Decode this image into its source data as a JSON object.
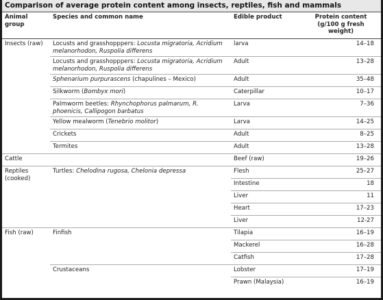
{
  "title": "Comparison of average protein content among insects, reptiles, fish and mammals",
  "header": [
    "Animal group",
    "Species and common name",
    "Edible product",
    "Protein content (g/100 g fresh weight)"
  ],
  "groups": [
    {
      "name": "Insects (raw)",
      "species": [
        {
          "name": [
            "Locusts and grasshopppers: ",
            "Locusta migratoria, Acridium melanorhodon, Ruspolia differens"
          ],
          "products": [
            {
              "product": "larva",
              "protein": "14–18"
            }
          ]
        },
        {
          "name": [
            "Locusts and grasshopppers: ",
            "Locusta migratoria, Acridium melanorhodon, Ruspolia differens"
          ],
          "products": [
            {
              "product": "Adult",
              "protein": "13–28"
            }
          ]
        },
        {
          "name": [
            "Sphenarium purpurascens",
            " (chapulines – Mexico)"
          ],
          "products": [
            {
              "product": "Adult",
              "protein": "35–48"
            }
          ]
        },
        {
          "name": [
            "Silkworm (",
            "Bombyx mori",
            ")"
          ],
          "products": [
            {
              "product": "Caterpillar",
              "protein": "10–17"
            }
          ]
        },
        {
          "name": [
            "Palmworm beetles: ",
            "Rhynchophorus palmarum, R. phoenicis, Callipogon barbatus"
          ],
          "products": [
            {
              "product": "Larva",
              "protein": "7–36"
            }
          ]
        },
        {
          "name": [
            "Yellow mealworm (",
            "Tenebrio molitor",
            ")"
          ],
          "products": [
            {
              "product": "Larva",
              "protein": "14–25"
            }
          ]
        },
        {
          "name": [
            "Crickets"
          ],
          "products": [
            {
              "product": "Adult",
              "protein": "8–25"
            }
          ]
        },
        {
          "name": [
            "Termites"
          ],
          "products": [
            {
              "product": "Adult",
              "protein": "13–28"
            }
          ]
        }
      ]
    },
    {
      "name": "Cattle",
      "species": [
        {
          "products": [
            {
              "product": "Beef (raw)",
              "protein": "19–26"
            }
          ]
        }
      ]
    },
    {
      "name": "Reptiles (cooked)",
      "species": [
        {
          "name": [
            "Turtles: ",
            "Chelodina rugosa, Chelonia depressa"
          ],
          "products": [
            {
              "product": "Flesh",
              "protein": "25–27"
            },
            {
              "product": "Intestine",
              "protein": "18"
            },
            {
              "product": "Liver",
              "protein": "11"
            },
            {
              "product": "Heart",
              "protein": "17–23"
            },
            {
              "product": "Liver",
              "protein": "12-27"
            }
          ]
        }
      ]
    },
    {
      "name": "Fish (raw)",
      "species": [
        {
          "name": [
            "Finfish"
          ],
          "products": [
            {
              "product": "Tilapia",
              "protein": "16–19"
            },
            {
              "product": "Mackerel",
              "protein": "16–28"
            },
            {
              "product": "Catfish",
              "protein": "17–28"
            }
          ]
        },
        {
          "name": [
            "Crustaceans"
          ],
          "products": [
            {
              "product": "Lobster",
              "protein": "17–19"
            },
            {
              "product": "Prawn (Malaysia)",
              "protein": "16–19"
            }
          ]
        }
      ]
    }
  ]
}
